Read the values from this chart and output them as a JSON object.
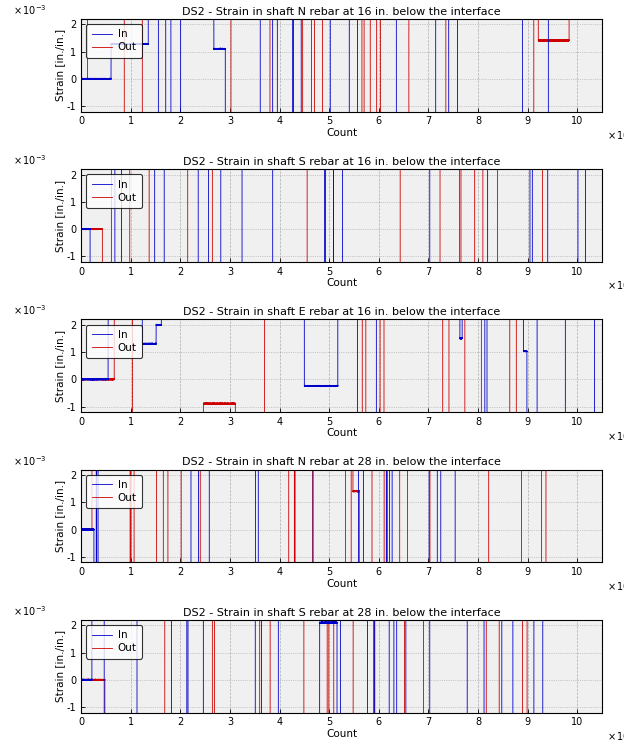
{
  "titles": [
    "DS2 - Strain in shaft N rebar at 16 in. below the interface",
    "DS2 - Strain in shaft S rebar at 16 in. below the interface",
    "DS2 - Strain in shaft E rebar at 16 in. below the interface",
    "DS2 - Strain in shaft N rebar at 28 in. below the interface",
    "DS2 - Strain in shaft S rebar at 28 in. below the interface"
  ],
  "ylabel": "Strain [in./in.]",
  "xlabel": "Count",
  "xlim": [
    0,
    105000
  ],
  "ylim": [
    -0.0012,
    0.0022
  ],
  "yticks": [
    -0.001,
    0,
    0.001,
    0.002
  ],
  "ytick_labels": [
    "-1",
    "0",
    "1",
    "2"
  ],
  "xticks": [
    0,
    10000,
    20000,
    30000,
    40000,
    50000,
    60000,
    70000,
    80000,
    90000,
    100000
  ],
  "xticklabels": [
    "0",
    "1",
    "2",
    "3",
    "4",
    "5",
    "6",
    "7",
    "8",
    "9",
    "10"
  ],
  "color_in": "#0000cc",
  "color_out": "#cc0000",
  "ax_bg": "#f0f0f0",
  "fig_bg": "#ffffff",
  "grid_color": "#808080",
  "legend_in": "In",
  "legend_out": "Out",
  "linewidth": 0.6
}
